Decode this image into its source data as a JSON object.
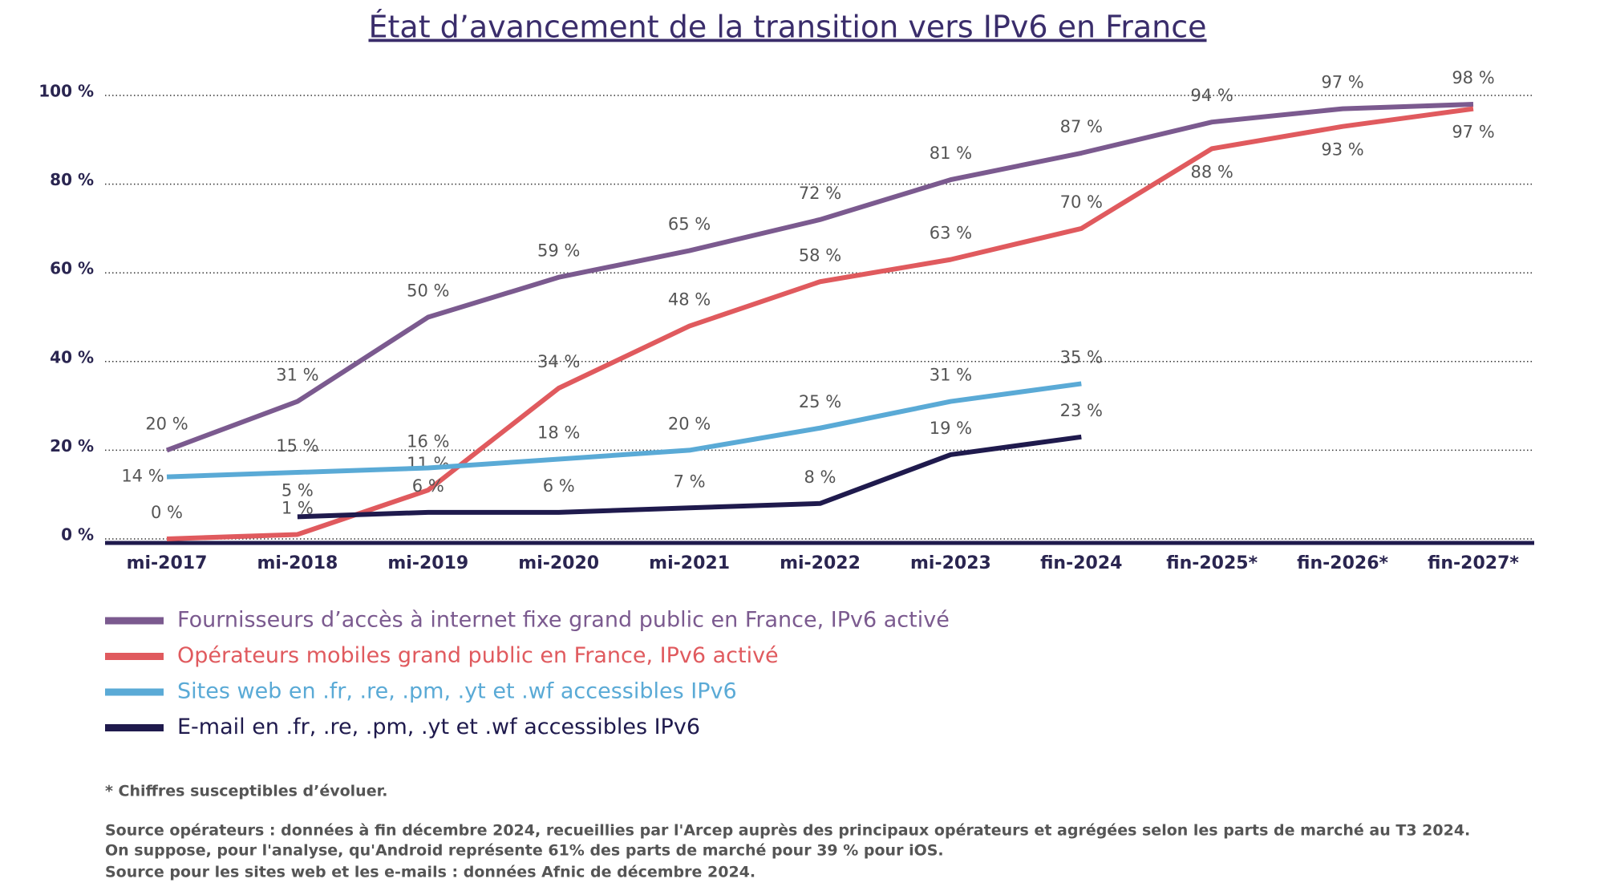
{
  "chart_data": {
    "type": "line",
    "title": "État d’avancement de la transition vers IPv6 en France",
    "categories": [
      "mi-2017",
      "mi-2018",
      "mi-2019",
      "mi-2020",
      "mi-2021",
      "mi-2022",
      "mi-2023",
      "fin-2024",
      "fin-2025*",
      "fin-2026*",
      "fin-2027*"
    ],
    "ylim": [
      0,
      100
    ],
    "yticks": [
      {
        "value": 0,
        "label": "0 %"
      },
      {
        "value": 20,
        "label": "20 %"
      },
      {
        "value": 40,
        "label": "40 %"
      },
      {
        "value": 60,
        "label": "60 %"
      },
      {
        "value": 80,
        "label": "80 %"
      },
      {
        "value": 100,
        "label": "100 %"
      }
    ],
    "grid": true,
    "series": [
      {
        "name": "Fournisseurs d’accès à internet fixe grand public en France, IPv6 activé",
        "color": "#7b5a8f",
        "values": [
          20,
          31,
          50,
          59,
          65,
          72,
          81,
          87,
          94,
          97,
          98
        ],
        "value_labels": [
          "20 %",
          "31 %",
          "50 %",
          "59 %",
          "65 %",
          "72 %",
          "81 %",
          "87 %",
          "94 %",
          "97 %",
          "98 %"
        ]
      },
      {
        "name": "Opérateurs mobiles grand public en France, IPv6 activé",
        "color": "#e05a5e",
        "values": [
          0,
          1,
          11,
          34,
          48,
          58,
          63,
          70,
          88,
          93,
          97
        ],
        "value_labels": [
          "0 %",
          "1 %",
          "11 %",
          "34 %",
          "48 %",
          "58 %",
          "63 %",
          "70 %",
          "88 %",
          "93 %",
          "97 %"
        ]
      },
      {
        "name": "Sites web en .fr, .re, .pm, .yt et .wf accessibles IPv6",
        "color": "#5aaad6",
        "values": [
          14,
          15,
          16,
          18,
          20,
          25,
          31,
          35,
          null,
          null,
          null
        ],
        "value_labels": [
          "14 %",
          "15 %",
          "16 %",
          "18 %",
          "20 %",
          "25 %",
          "31 %",
          "35 %",
          null,
          null,
          null
        ]
      },
      {
        "name": "E-mail en .fr, .re, .pm, .yt et .wf accessibles IPv6",
        "color": "#1f1a4d",
        "values": [
          null,
          5,
          6,
          6,
          7,
          8,
          19,
          23,
          null,
          null,
          null
        ],
        "value_labels": [
          null,
          "5 %",
          "6 %",
          "6 %",
          "7 %",
          "8 %",
          "19 %",
          "23 %",
          null,
          null,
          null
        ]
      }
    ],
    "footnote": "* Chiffres susceptibles d’évoluer.",
    "source": [
      "Source opérateurs : données à fin décembre 2024, recueillies par l'Arcep auprès des principaux opérateurs et agrégées selon  les parts de marché au T3 2024.",
      "On suppose, pour l'analyse, qu'Android représente 61% des parts de marché pour 39 % pour iOS.",
      "Source pour les sites web et les e-mails : données Afnic de décembre 2024."
    ]
  }
}
